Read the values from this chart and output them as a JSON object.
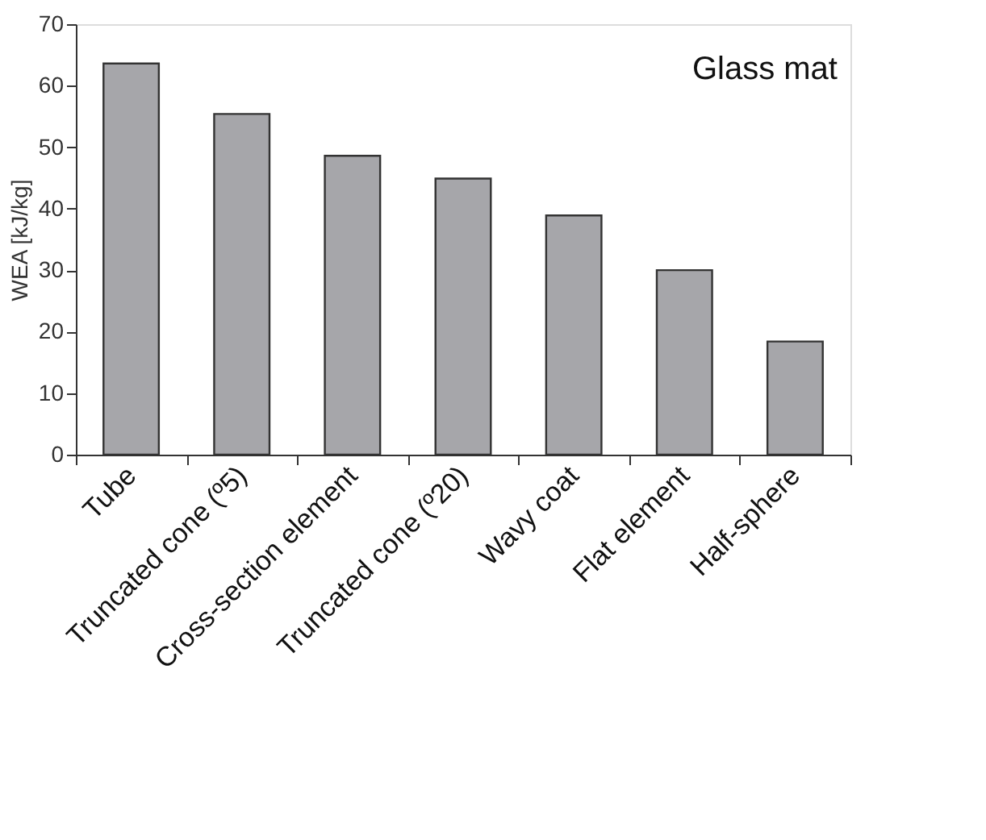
{
  "chart_data": {
    "type": "bar",
    "ylabel": "WEA [kJ/kg]",
    "categories": [
      "Tube",
      "Truncated cone (º5)",
      "Cross-section element",
      "Truncated cone (º20)",
      "Wavy coat",
      "Flat element",
      "Half-sphere"
    ],
    "values": [
      63.6,
      55.4,
      48.6,
      44.9,
      38.9,
      30.0,
      18.4
    ],
    "color": "#a6a6aa",
    "ylim": [
      0,
      70
    ],
    "yticks": [
      0,
      10,
      20,
      30,
      40,
      50,
      60,
      70
    ],
    "grid": false,
    "annotations": [
      "Glass mat"
    ]
  }
}
